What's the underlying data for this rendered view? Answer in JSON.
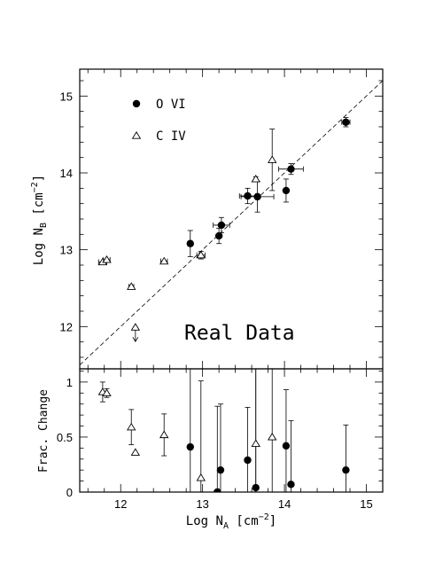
{
  "chart_data": [
    {
      "type": "scatter",
      "panel": "top",
      "title": "",
      "xlabel": "",
      "ylabel": "Log N_B [cm^-2]",
      "ylabel_parts": {
        "main": "Log N",
        "sub": "B",
        "unit_open": " [cm",
        "sup": "−2",
        "unit_close": "]"
      },
      "xlim": [
        11.5,
        15.2
      ],
      "ylim": [
        11.45,
        15.35
      ],
      "xticks": [
        12,
        13,
        14,
        15
      ],
      "yticks": [
        12,
        13,
        14,
        15
      ],
      "ytick_labels": [
        "12",
        "13",
        "14",
        "15"
      ],
      "grid": false,
      "legend_position": "top-left",
      "annotation": "Real Data",
      "reference_line": {
        "label": "",
        "style": "dashed",
        "slope": 1,
        "intercept": 0
      },
      "series": [
        {
          "name": "O VI",
          "marker": "filled-circle",
          "points": [
            {
              "x": 12.85,
              "y": 13.08,
              "xerr": 0,
              "yerr": 0.17
            },
            {
              "x": 13.2,
              "y": 13.18,
              "xerr": 0,
              "yerr": 0.1
            },
            {
              "x": 13.23,
              "y": 13.32,
              "xerr": 0.1,
              "yerr": 0.1
            },
            {
              "x": 13.55,
              "y": 13.7,
              "xerr": 0.1,
              "yerr": 0.1
            },
            {
              "x": 13.67,
              "y": 13.69,
              "xerr": 0.2,
              "yerr": 0.2
            },
            {
              "x": 14.02,
              "y": 13.77,
              "xerr": 0,
              "yerr": 0.15
            },
            {
              "x": 14.08,
              "y": 14.05,
              "xerr": 0.15,
              "yerr": 0.07
            },
            {
              "x": 14.75,
              "y": 14.66,
              "xerr": 0.05,
              "yerr": 0.06
            }
          ]
        },
        {
          "name": "C IV",
          "marker": "open-triangle",
          "points": [
            {
              "x": 11.78,
              "y": 12.84,
              "xerr": 0.05,
              "yerr": 0
            },
            {
              "x": 11.83,
              "y": 12.87,
              "xerr": 0.04,
              "yerr": 0
            },
            {
              "x": 12.13,
              "y": 12.52,
              "xerr": 0.03,
              "yerr": 0
            },
            {
              "x": 12.18,
              "y": 11.99,
              "xerr": 0,
              "yerr": 0,
              "upper_limit": true
            },
            {
              "x": 12.53,
              "y": 12.85,
              "xerr": 0.04,
              "yerr": 0
            },
            {
              "x": 12.98,
              "y": 12.93,
              "xerr": 0.05,
              "yerr": 0.05
            },
            {
              "x": 13.65,
              "y": 13.92,
              "xerr": 0,
              "yerr": 0.03
            },
            {
              "x": 13.85,
              "y": 14.17,
              "xerr": 0,
              "yerr": 0.4
            }
          ]
        }
      ]
    },
    {
      "type": "scatter",
      "panel": "bottom",
      "title": "",
      "xlabel": "Log N_A [cm^-2]",
      "xlabel_parts": {
        "main": "Log N",
        "sub": "A",
        "unit_open": " [cm",
        "sup": "−2",
        "unit_close": "]"
      },
      "ylabel": "Frac. Change",
      "xlim": [
        11.5,
        15.2
      ],
      "ylim": [
        0,
        1.12
      ],
      "xticks": [
        12,
        13,
        14,
        15
      ],
      "xtick_labels": [
        "12",
        "13",
        "14",
        "15"
      ],
      "yticks": [
        0,
        0.5,
        1
      ],
      "ytick_labels": [
        "0",
        "0.5",
        "1"
      ],
      "grid": false,
      "series": [
        {
          "name": "O VI",
          "marker": "filled-circle",
          "points": [
            {
              "x": 12.85,
              "y": 0.41,
              "lo": 0,
              "hi": 1.12
            },
            {
              "x": 13.18,
              "y": 0.0,
              "lo": 0,
              "hi": 0.78
            },
            {
              "x": 13.22,
              "y": 0.2,
              "lo": 0,
              "hi": 0.8
            },
            {
              "x": 13.55,
              "y": 0.29,
              "lo": 0,
              "hi": 0.77
            },
            {
              "x": 13.65,
              "y": 0.04,
              "lo": 0,
              "hi": 1.12
            },
            {
              "x": 14.02,
              "y": 0.42,
              "lo": 0,
              "hi": 0.93
            },
            {
              "x": 14.08,
              "y": 0.07,
              "lo": 0,
              "hi": 0.65
            },
            {
              "x": 14.75,
              "y": 0.2,
              "lo": 0,
              "hi": 0.61
            }
          ]
        },
        {
          "name": "C IV",
          "marker": "open-triangle",
          "points": [
            {
              "x": 11.78,
              "y": 0.91,
              "lo": 0.82,
              "hi": 1.0
            },
            {
              "x": 11.83,
              "y": 0.9,
              "lo": 0.86,
              "hi": 0.94
            },
            {
              "x": 12.13,
              "y": 0.59,
              "lo": 0.43,
              "hi": 0.75
            },
            {
              "x": 12.18,
              "y": 0.36,
              "lo": 0.36,
              "hi": 0.36
            },
            {
              "x": 12.53,
              "y": 0.52,
              "lo": 0.33,
              "hi": 0.71
            },
            {
              "x": 12.98,
              "y": 0.13,
              "lo": 0,
              "hi": 1.01
            },
            {
              "x": 13.65,
              "y": 0.44,
              "lo": 0,
              "hi": 1.12
            },
            {
              "x": 13.85,
              "y": 0.5,
              "lo": 0,
              "hi": 1.12
            }
          ]
        }
      ]
    }
  ]
}
